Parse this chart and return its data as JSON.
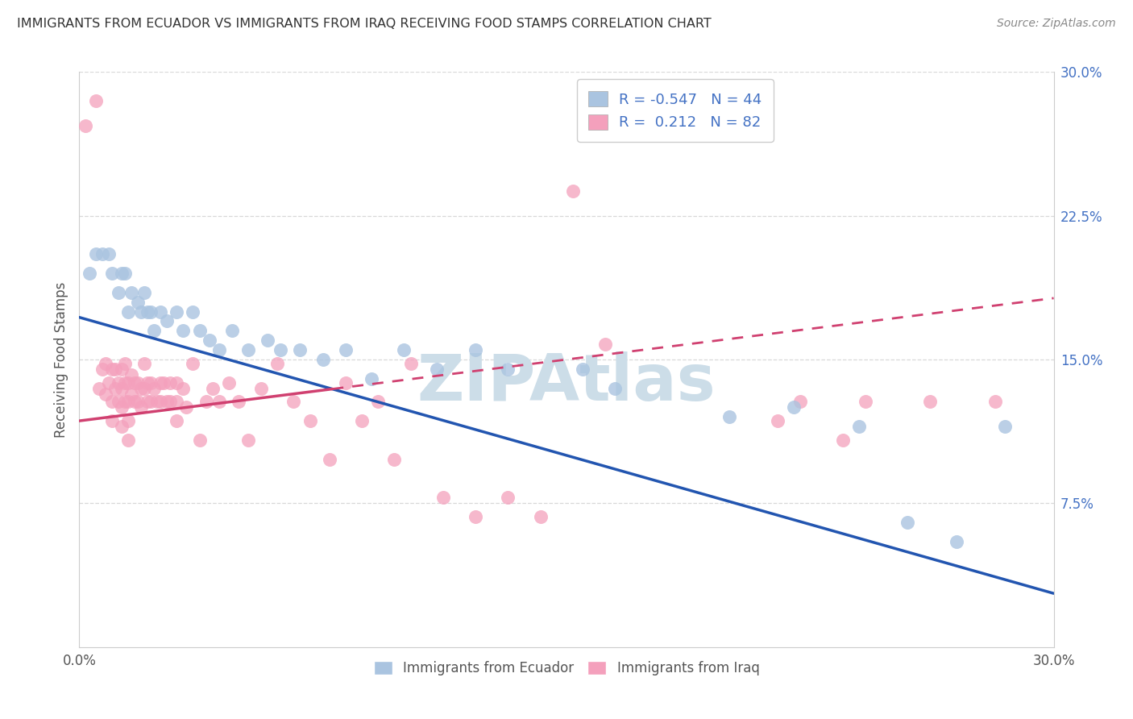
{
  "title": "IMMIGRANTS FROM ECUADOR VS IMMIGRANTS FROM IRAQ RECEIVING FOOD STAMPS CORRELATION CHART",
  "source": "Source: ZipAtlas.com",
  "ylabel": "Receiving Food Stamps",
  "ecuador_color": "#aac4e0",
  "iraq_color": "#f4a0bc",
  "ecuador_line_color": "#2255b0",
  "iraq_line_color": "#d04070",
  "watermark": "ZIPAtlas",
  "watermark_color": "#ccdde8",
  "background_color": "#ffffff",
  "grid_color": "#d8d8d8",
  "xmin": 0.0,
  "xmax": 0.3,
  "ymin": 0.0,
  "ymax": 0.3,
  "ecuador_R": -0.547,
  "ecuador_N": 44,
  "iraq_R": 0.212,
  "iraq_N": 82,
  "ecuador_line_y0": 0.172,
  "ecuador_line_y1": 0.028,
  "iraq_line_y0": 0.118,
  "iraq_line_y1": 0.182,
  "ecuador_scatter": [
    [
      0.003,
      0.195
    ],
    [
      0.005,
      0.205
    ],
    [
      0.007,
      0.205
    ],
    [
      0.009,
      0.205
    ],
    [
      0.01,
      0.195
    ],
    [
      0.012,
      0.185
    ],
    [
      0.013,
      0.195
    ],
    [
      0.014,
      0.195
    ],
    [
      0.015,
      0.175
    ],
    [
      0.016,
      0.185
    ],
    [
      0.018,
      0.18
    ],
    [
      0.019,
      0.175
    ],
    [
      0.02,
      0.185
    ],
    [
      0.021,
      0.175
    ],
    [
      0.022,
      0.175
    ],
    [
      0.023,
      0.165
    ],
    [
      0.025,
      0.175
    ],
    [
      0.027,
      0.17
    ],
    [
      0.03,
      0.175
    ],
    [
      0.032,
      0.165
    ],
    [
      0.035,
      0.175
    ],
    [
      0.037,
      0.165
    ],
    [
      0.04,
      0.16
    ],
    [
      0.043,
      0.155
    ],
    [
      0.047,
      0.165
    ],
    [
      0.052,
      0.155
    ],
    [
      0.058,
      0.16
    ],
    [
      0.062,
      0.155
    ],
    [
      0.068,
      0.155
    ],
    [
      0.075,
      0.15
    ],
    [
      0.082,
      0.155
    ],
    [
      0.09,
      0.14
    ],
    [
      0.1,
      0.155
    ],
    [
      0.11,
      0.145
    ],
    [
      0.122,
      0.155
    ],
    [
      0.132,
      0.145
    ],
    [
      0.155,
      0.145
    ],
    [
      0.165,
      0.135
    ],
    [
      0.2,
      0.12
    ],
    [
      0.22,
      0.125
    ],
    [
      0.24,
      0.115
    ],
    [
      0.255,
      0.065
    ],
    [
      0.27,
      0.055
    ],
    [
      0.285,
      0.115
    ]
  ],
  "iraq_scatter": [
    [
      0.002,
      0.272
    ],
    [
      0.005,
      0.285
    ],
    [
      0.006,
      0.135
    ],
    [
      0.007,
      0.145
    ],
    [
      0.008,
      0.148
    ],
    [
      0.008,
      0.132
    ],
    [
      0.009,
      0.138
    ],
    [
      0.01,
      0.145
    ],
    [
      0.01,
      0.128
    ],
    [
      0.01,
      0.118
    ],
    [
      0.011,
      0.145
    ],
    [
      0.011,
      0.135
    ],
    [
      0.012,
      0.138
    ],
    [
      0.012,
      0.128
    ],
    [
      0.013,
      0.145
    ],
    [
      0.013,
      0.135
    ],
    [
      0.013,
      0.125
    ],
    [
      0.013,
      0.115
    ],
    [
      0.014,
      0.148
    ],
    [
      0.014,
      0.138
    ],
    [
      0.014,
      0.128
    ],
    [
      0.015,
      0.138
    ],
    [
      0.015,
      0.128
    ],
    [
      0.015,
      0.118
    ],
    [
      0.015,
      0.108
    ],
    [
      0.016,
      0.142
    ],
    [
      0.016,
      0.132
    ],
    [
      0.017,
      0.138
    ],
    [
      0.017,
      0.128
    ],
    [
      0.018,
      0.138
    ],
    [
      0.018,
      0.128
    ],
    [
      0.019,
      0.135
    ],
    [
      0.019,
      0.125
    ],
    [
      0.02,
      0.148
    ],
    [
      0.02,
      0.135
    ],
    [
      0.021,
      0.138
    ],
    [
      0.021,
      0.128
    ],
    [
      0.022,
      0.138
    ],
    [
      0.022,
      0.128
    ],
    [
      0.023,
      0.135
    ],
    [
      0.024,
      0.128
    ],
    [
      0.025,
      0.138
    ],
    [
      0.025,
      0.128
    ],
    [
      0.026,
      0.138
    ],
    [
      0.027,
      0.128
    ],
    [
      0.028,
      0.138
    ],
    [
      0.028,
      0.128
    ],
    [
      0.03,
      0.138
    ],
    [
      0.03,
      0.128
    ],
    [
      0.03,
      0.118
    ],
    [
      0.032,
      0.135
    ],
    [
      0.033,
      0.125
    ],
    [
      0.035,
      0.148
    ],
    [
      0.037,
      0.108
    ],
    [
      0.039,
      0.128
    ],
    [
      0.041,
      0.135
    ],
    [
      0.043,
      0.128
    ],
    [
      0.046,
      0.138
    ],
    [
      0.049,
      0.128
    ],
    [
      0.052,
      0.108
    ],
    [
      0.056,
      0.135
    ],
    [
      0.061,
      0.148
    ],
    [
      0.066,
      0.128
    ],
    [
      0.071,
      0.118
    ],
    [
      0.077,
      0.098
    ],
    [
      0.082,
      0.138
    ],
    [
      0.087,
      0.118
    ],
    [
      0.092,
      0.128
    ],
    [
      0.097,
      0.098
    ],
    [
      0.102,
      0.148
    ],
    [
      0.112,
      0.078
    ],
    [
      0.122,
      0.068
    ],
    [
      0.132,
      0.078
    ],
    [
      0.142,
      0.068
    ],
    [
      0.152,
      0.238
    ],
    [
      0.162,
      0.158
    ],
    [
      0.222,
      0.128
    ],
    [
      0.242,
      0.128
    ],
    [
      0.262,
      0.128
    ],
    [
      0.282,
      0.128
    ],
    [
      0.215,
      0.118
    ],
    [
      0.235,
      0.108
    ]
  ]
}
